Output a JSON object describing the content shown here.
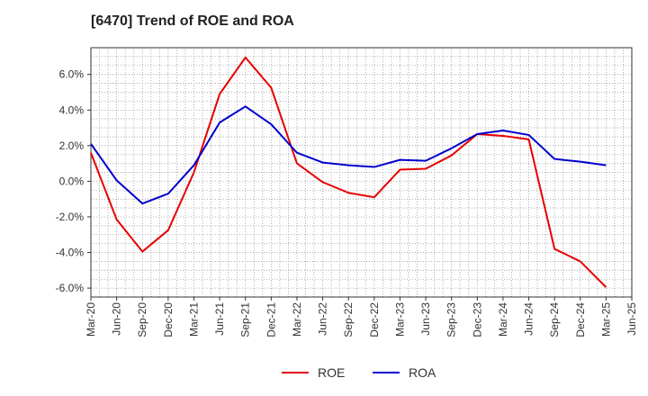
{
  "chart_data": {
    "type": "line",
    "title": "[6470]  Trend of ROE and ROA",
    "xlabel": "",
    "ylabel": "",
    "x": [
      "Mar-20",
      "Jun-20",
      "Sep-20",
      "Dec-20",
      "Mar-21",
      "Jun-21",
      "Sep-21",
      "Dec-21",
      "Mar-22",
      "Jun-22",
      "Sep-22",
      "Dec-22",
      "Mar-23",
      "Jun-23",
      "Sep-23",
      "Dec-23",
      "Mar-24",
      "Jun-24",
      "Sep-24",
      "Dec-24",
      "Mar-25",
      "Jun-25"
    ],
    "ylim": [
      -6.5,
      7.5
    ],
    "yticks": [
      -6.0,
      -4.0,
      -2.0,
      0.0,
      2.0,
      4.0,
      6.0
    ],
    "ytick_labels": [
      "-6.0%",
      "-4.0%",
      "-2.0%",
      "0.0%",
      "2.0%",
      "4.0%",
      "6.0%"
    ],
    "grid": true,
    "legend_position": "bottom-center",
    "series": [
      {
        "name": "ROE",
        "color": "#e60000",
        "values": [
          1.6,
          -2.15,
          -3.95,
          -2.75,
          0.5,
          4.9,
          6.95,
          5.25,
          1.0,
          -0.05,
          -0.65,
          -0.9,
          0.65,
          0.7,
          1.45,
          2.65,
          2.55,
          2.35,
          -3.8,
          -4.5,
          -5.95,
          null
        ]
      },
      {
        "name": "ROA",
        "color": "#0000cc",
        "values": [
          2.1,
          0.05,
          -1.25,
          -0.7,
          0.9,
          3.3,
          4.2,
          3.2,
          1.6,
          1.05,
          0.9,
          0.8,
          1.2,
          1.15,
          1.85,
          2.65,
          2.85,
          2.6,
          1.25,
          1.1,
          0.9,
          null
        ]
      }
    ]
  }
}
